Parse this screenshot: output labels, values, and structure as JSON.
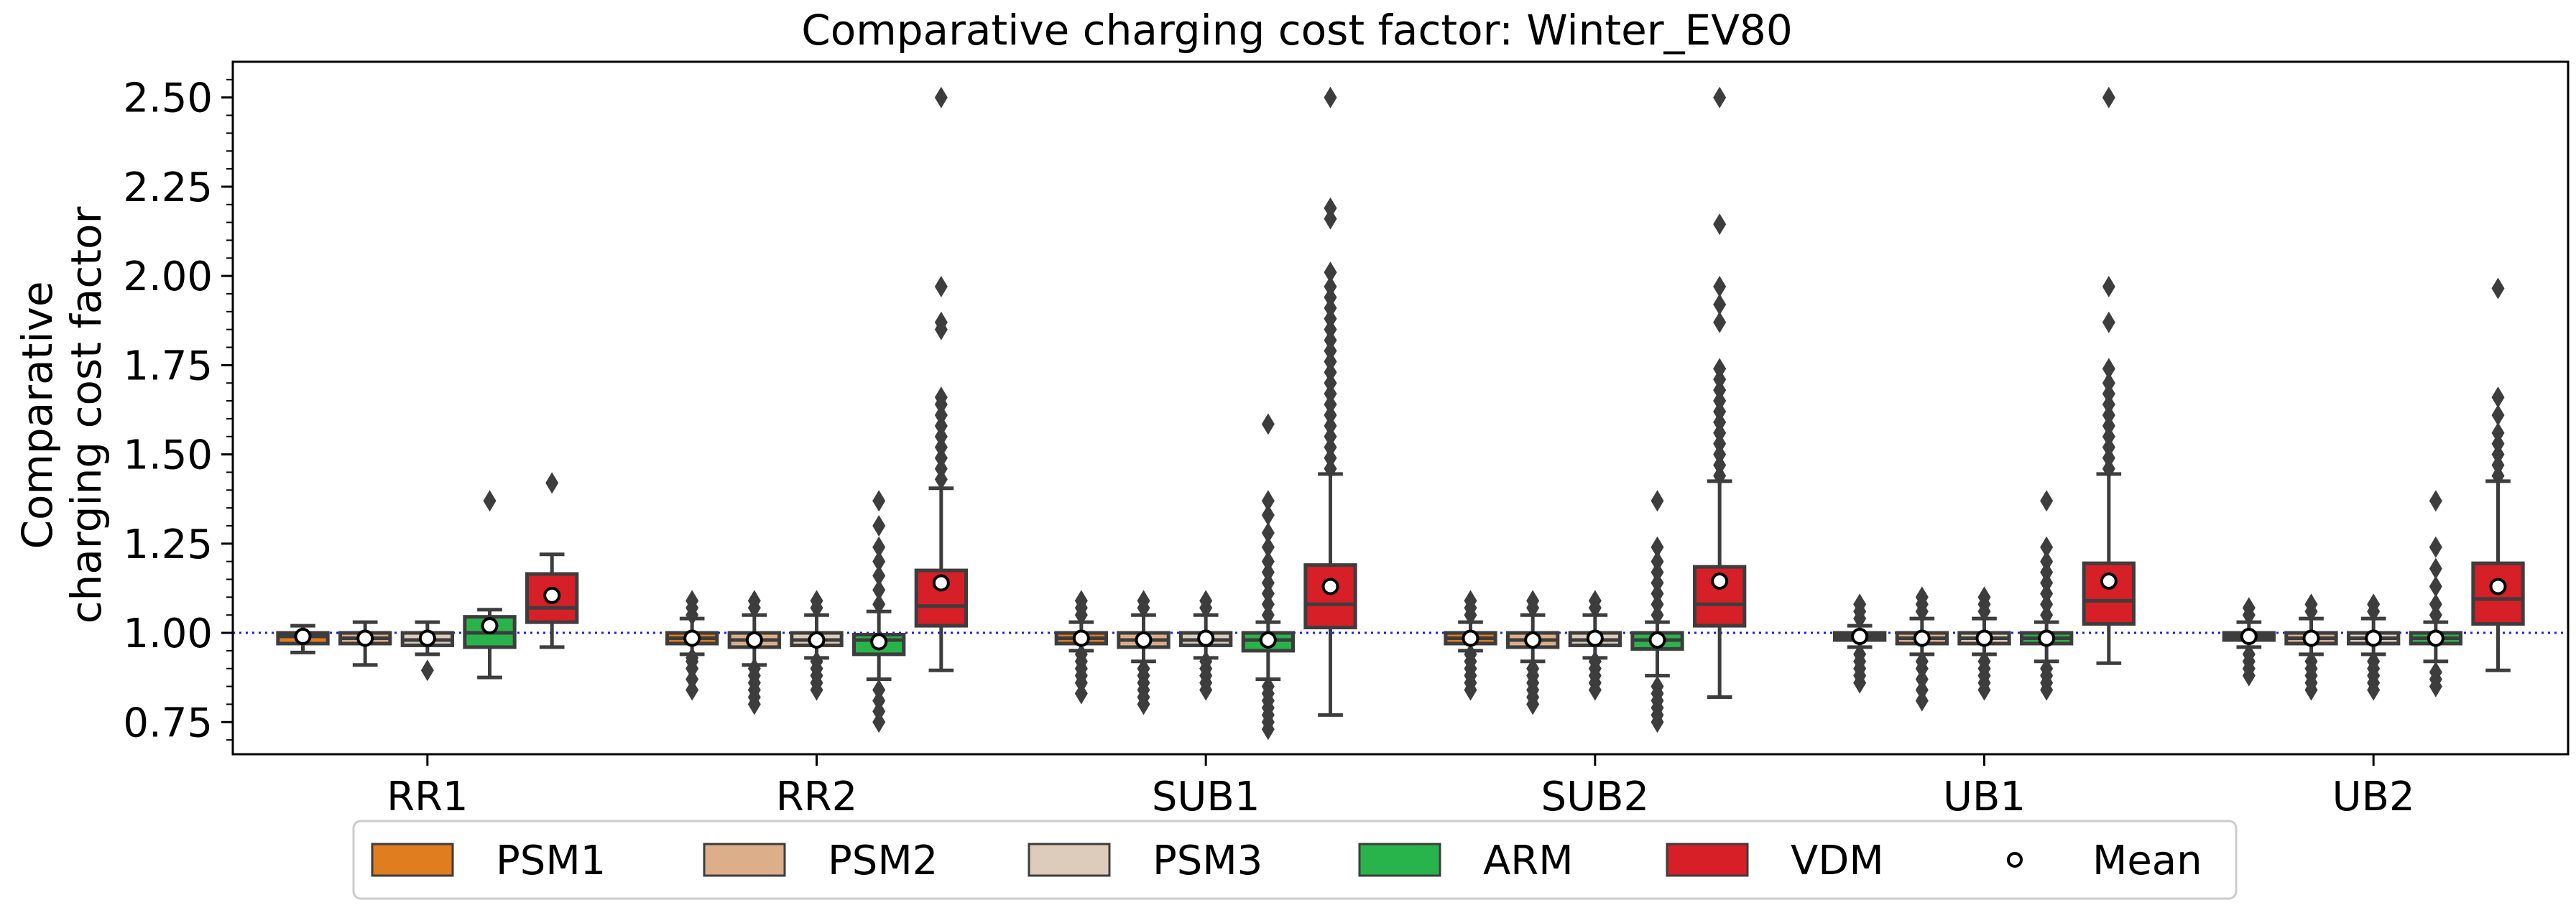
{
  "chart_data": {
    "type": "box",
    "title": "Comparative charging cost factor: Winter_EV80",
    "ylabel_lines": [
      "Comparative",
      "charging cost factor"
    ],
    "xlabel": "",
    "ylim": [
      0.66,
      2.6
    ],
    "yticks": [
      0.75,
      1.0,
      1.25,
      1.5,
      1.75,
      2.0,
      2.25,
      2.5
    ],
    "ytick_labels": [
      "0.75",
      "1.00",
      "1.25",
      "1.50",
      "1.75",
      "2.00",
      "2.25",
      "2.50"
    ],
    "reference_line": 1.0,
    "categories": [
      "RR1",
      "RR2",
      "SUB1",
      "SUB2",
      "UB1",
      "UB2"
    ],
    "series": [
      {
        "name": "PSM1",
        "color": "#e07d1f",
        "boxes": [
          {
            "whislo": 0.945,
            "q1": 0.97,
            "med": 0.99,
            "q3": 1.0,
            "whishi": 1.02,
            "mean": 0.99,
            "fliers": []
          },
          {
            "whislo": 0.94,
            "q1": 0.97,
            "med": 0.985,
            "q3": 1.0,
            "whishi": 1.04,
            "mean": 0.985,
            "fliers": [
              0.84,
              0.87,
              0.9,
              0.92,
              0.93,
              1.05,
              1.07,
              1.09
            ]
          },
          {
            "whislo": 0.95,
            "q1": 0.97,
            "med": 0.985,
            "q3": 1.0,
            "whishi": 1.03,
            "mean": 0.985,
            "fliers": [
              0.83,
              0.86,
              0.88,
              0.9,
              0.92,
              0.94,
              1.05,
              1.07,
              1.09
            ]
          },
          {
            "whislo": 0.95,
            "q1": 0.97,
            "med": 0.985,
            "q3": 1.0,
            "whishi": 1.03,
            "mean": 0.985,
            "fliers": [
              0.84,
              0.86,
              0.88,
              0.9,
              0.92,
              0.94,
              1.05,
              1.07,
              1.09
            ]
          },
          {
            "whislo": 0.96,
            "q1": 0.98,
            "med": 0.99,
            "q3": 1.0,
            "whishi": 1.02,
            "mean": 0.99,
            "fliers": [
              0.86,
              0.88,
              0.9,
              0.92,
              0.94,
              1.04,
              1.06,
              1.08
            ]
          },
          {
            "whislo": 0.96,
            "q1": 0.98,
            "med": 0.99,
            "q3": 1.0,
            "whishi": 1.03,
            "mean": 0.99,
            "fliers": [
              0.88,
              0.9,
              0.92,
              0.94,
              1.05,
              1.07
            ]
          }
        ]
      },
      {
        "name": "PSM2",
        "color": "#dcae8a",
        "boxes": [
          {
            "whislo": 0.91,
            "q1": 0.97,
            "med": 0.985,
            "q3": 1.0,
            "whishi": 1.03,
            "mean": 0.985,
            "fliers": []
          },
          {
            "whislo": 0.91,
            "q1": 0.96,
            "med": 0.98,
            "q3": 1.0,
            "whishi": 1.05,
            "mean": 0.98,
            "fliers": [
              0.8,
              0.82,
              0.84,
              0.86,
              0.88,
              0.9,
              1.07,
              1.09
            ]
          },
          {
            "whislo": 0.92,
            "q1": 0.96,
            "med": 0.98,
            "q3": 1.0,
            "whishi": 1.05,
            "mean": 0.98,
            "fliers": [
              0.8,
              0.82,
              0.84,
              0.86,
              0.88,
              0.9,
              1.07,
              1.09
            ]
          },
          {
            "whislo": 0.92,
            "q1": 0.96,
            "med": 0.98,
            "q3": 1.0,
            "whishi": 1.05,
            "mean": 0.98,
            "fliers": [
              0.8,
              0.82,
              0.84,
              0.86,
              0.88,
              0.9,
              1.07,
              1.09
            ]
          },
          {
            "whislo": 0.94,
            "q1": 0.97,
            "med": 0.985,
            "q3": 1.0,
            "whishi": 1.04,
            "mean": 0.985,
            "fliers": [
              0.81,
              0.84,
              0.87,
              0.9,
              0.92,
              1.06,
              1.08,
              1.1
            ]
          },
          {
            "whislo": 0.94,
            "q1": 0.97,
            "med": 0.985,
            "q3": 1.0,
            "whishi": 1.04,
            "mean": 0.985,
            "fliers": [
              0.84,
              0.86,
              0.88,
              0.9,
              0.92,
              1.06,
              1.08
            ]
          }
        ]
      },
      {
        "name": "PSM3",
        "color": "#ddccbc",
        "boxes": [
          {
            "whislo": 0.94,
            "q1": 0.965,
            "med": 0.98,
            "q3": 1.0,
            "whishi": 1.03,
            "mean": 0.985,
            "fliers": [
              0.895
            ]
          },
          {
            "whislo": 0.93,
            "q1": 0.965,
            "med": 0.98,
            "q3": 1.0,
            "whishi": 1.05,
            "mean": 0.98,
            "fliers": [
              0.84,
              0.86,
              0.88,
              0.9,
              0.92,
              1.07,
              1.09
            ]
          },
          {
            "whislo": 0.93,
            "q1": 0.965,
            "med": 0.98,
            "q3": 1.0,
            "whishi": 1.05,
            "mean": 0.985,
            "fliers": [
              0.84,
              0.86,
              0.88,
              0.9,
              0.92,
              1.07,
              1.09
            ]
          },
          {
            "whislo": 0.93,
            "q1": 0.965,
            "med": 0.98,
            "q3": 1.0,
            "whishi": 1.05,
            "mean": 0.985,
            "fliers": [
              0.84,
              0.86,
              0.88,
              0.9,
              0.92,
              1.07,
              1.09
            ]
          },
          {
            "whislo": 0.94,
            "q1": 0.97,
            "med": 0.985,
            "q3": 1.0,
            "whishi": 1.04,
            "mean": 0.985,
            "fliers": [
              0.84,
              0.86,
              0.88,
              0.9,
              0.92,
              1.06,
              1.08,
              1.1
            ]
          },
          {
            "whislo": 0.94,
            "q1": 0.97,
            "med": 0.985,
            "q3": 1.0,
            "whishi": 1.04,
            "mean": 0.985,
            "fliers": [
              0.84,
              0.86,
              0.88,
              0.9,
              0.92,
              1.06,
              1.08
            ]
          }
        ]
      },
      {
        "name": "ARM",
        "color": "#28b44b",
        "boxes": [
          {
            "whislo": 0.875,
            "q1": 0.96,
            "med": 1.0,
            "q3": 1.045,
            "whishi": 1.065,
            "mean": 1.02,
            "fliers": [
              1.37
            ]
          },
          {
            "whislo": 0.87,
            "q1": 0.94,
            "med": 0.98,
            "q3": 0.995,
            "whishi": 1.06,
            "mean": 0.975,
            "fliers": [
              0.75,
              0.78,
              0.81,
              0.84,
              1.08,
              1.12,
              1.16,
              1.2,
              1.24,
              1.3,
              1.37
            ]
          },
          {
            "whislo": 0.87,
            "q1": 0.95,
            "med": 0.98,
            "q3": 1.0,
            "whishi": 1.03,
            "mean": 0.98,
            "fliers": [
              0.73,
              0.75,
              0.77,
              0.79,
              0.81,
              0.83,
              0.85,
              1.05,
              1.08,
              1.11,
              1.14,
              1.17,
              1.2,
              1.24,
              1.28,
              1.33,
              1.37,
              1.585
            ]
          },
          {
            "whislo": 0.88,
            "q1": 0.955,
            "med": 0.98,
            "q3": 1.0,
            "whishi": 1.03,
            "mean": 0.98,
            "fliers": [
              0.75,
              0.77,
              0.79,
              0.81,
              0.83,
              0.85,
              1.05,
              1.08,
              1.11,
              1.14,
              1.17,
              1.2,
              1.24,
              1.37
            ]
          },
          {
            "whislo": 0.92,
            "q1": 0.97,
            "med": 0.985,
            "q3": 1.0,
            "whishi": 1.03,
            "mean": 0.985,
            "fliers": [
              0.84,
              0.86,
              0.88,
              0.9,
              1.05,
              1.08,
              1.11,
              1.14,
              1.17,
              1.2,
              1.24,
              1.37
            ]
          },
          {
            "whislo": 0.92,
            "q1": 0.97,
            "med": 0.985,
            "q3": 1.0,
            "whishi": 1.03,
            "mean": 0.985,
            "fliers": [
              0.85,
              0.87,
              0.89,
              1.05,
              1.08,
              1.13,
              1.18,
              1.24,
              1.37
            ]
          }
        ]
      },
      {
        "name": "VDM",
        "color": "#d61f26",
        "boxes": [
          {
            "whislo": 0.96,
            "q1": 1.03,
            "med": 1.07,
            "q3": 1.165,
            "whishi": 1.22,
            "mean": 1.105,
            "fliers": [
              1.42
            ]
          },
          {
            "whislo": 0.895,
            "q1": 1.02,
            "med": 1.075,
            "q3": 1.175,
            "whishi": 1.405,
            "mean": 1.14,
            "fliers": [
              1.43,
              1.46,
              1.49,
              1.52,
              1.55,
              1.58,
              1.61,
              1.64,
              1.66,
              1.85,
              1.87,
              1.97,
              2.5
            ]
          },
          {
            "whislo": 0.77,
            "q1": 1.015,
            "med": 1.08,
            "q3": 1.19,
            "whishi": 1.445,
            "mean": 1.13,
            "fliers": [
              1.46,
              1.49,
              1.52,
              1.55,
              1.58,
              1.61,
              1.64,
              1.67,
              1.7,
              1.73,
              1.76,
              1.79,
              1.82,
              1.85,
              1.88,
              1.91,
              1.94,
              1.97,
              2.01,
              2.16,
              2.19,
              2.5
            ]
          },
          {
            "whislo": 0.82,
            "q1": 1.02,
            "med": 1.08,
            "q3": 1.185,
            "whishi": 1.425,
            "mean": 1.145,
            "fliers": [
              1.44,
              1.47,
              1.5,
              1.53,
              1.56,
              1.59,
              1.62,
              1.65,
              1.68,
              1.71,
              1.74,
              1.87,
              1.92,
              1.97,
              2.145,
              2.5
            ]
          },
          {
            "whislo": 0.915,
            "q1": 1.025,
            "med": 1.09,
            "q3": 1.195,
            "whishi": 1.445,
            "mean": 1.145,
            "fliers": [
              1.46,
              1.49,
              1.52,
              1.55,
              1.58,
              1.61,
              1.64,
              1.67,
              1.7,
              1.74,
              1.87,
              1.97,
              2.5
            ]
          },
          {
            "whislo": 0.895,
            "q1": 1.025,
            "med": 1.095,
            "q3": 1.195,
            "whishi": 1.425,
            "mean": 1.13,
            "fliers": [
              1.44,
              1.47,
              1.5,
              1.53,
              1.56,
              1.61,
              1.66,
              1.965
            ]
          }
        ]
      }
    ],
    "legend": {
      "placement": "bottom-center",
      "entries": [
        "PSM1",
        "PSM2",
        "PSM3",
        "ARM",
        "VDM",
        "Mean"
      ]
    }
  }
}
